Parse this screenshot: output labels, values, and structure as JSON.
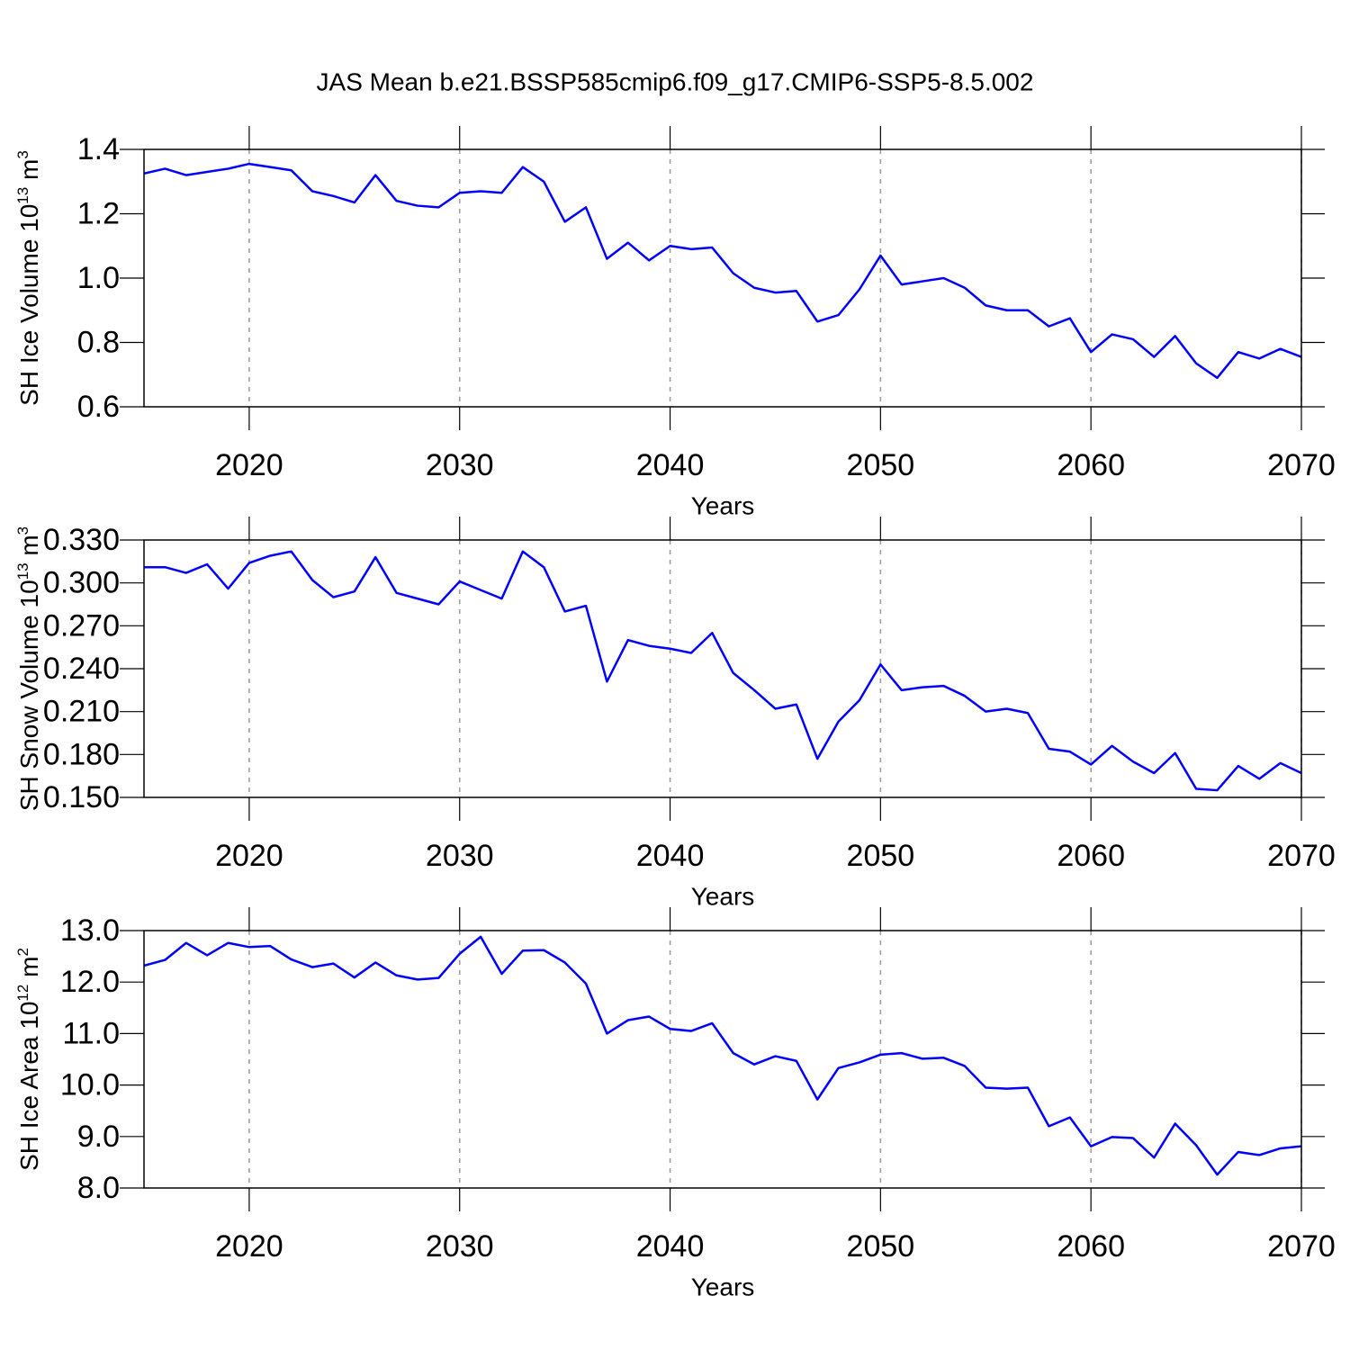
{
  "chart_data": [
    {
      "type": "line",
      "title": "JAS Mean b.e21.BSSP585cmip6.f09_g17.CMIP6-SSP5-8.5.002",
      "xlabel": "Years",
      "ylabel": {
        "text": "SH Ice Volume 10",
        "exp": "13",
        "unit": " m",
        "unit_exp": "3"
      },
      "x": [
        2015,
        2016,
        2017,
        2018,
        2019,
        2020,
        2021,
        2022,
        2023,
        2024,
        2025,
        2026,
        2027,
        2028,
        2029,
        2030,
        2031,
        2032,
        2033,
        2034,
        2035,
        2036,
        2037,
        2038,
        2039,
        2040,
        2041,
        2042,
        2043,
        2044,
        2045,
        2046,
        2047,
        2048,
        2049,
        2050,
        2051,
        2052,
        2053,
        2054,
        2055,
        2056,
        2057,
        2058,
        2059,
        2060,
        2061,
        2062,
        2063,
        2064,
        2065,
        2066,
        2067,
        2068,
        2069,
        2070
      ],
      "series": [
        {
          "color": "#0000ff",
          "values": [
            1.325,
            1.34,
            1.32,
            1.33,
            1.34,
            1.355,
            1.345,
            1.335,
            1.27,
            1.255,
            1.235,
            1.32,
            1.24,
            1.225,
            1.22,
            1.265,
            1.27,
            1.265,
            1.345,
            1.3,
            1.175,
            1.22,
            1.06,
            1.11,
            1.055,
            1.1,
            1.09,
            1.095,
            1.015,
            0.97,
            0.955,
            0.96,
            0.865,
            0.885,
            0.965,
            1.07,
            0.98,
            0.99,
            1.0,
            0.97,
            0.915,
            0.9,
            0.9,
            0.85,
            0.875,
            0.77,
            0.825,
            0.81,
            0.755,
            0.82,
            0.735,
            0.69,
            0.77,
            0.75,
            0.78,
            0.755
          ]
        }
      ],
      "xlim": [
        2015,
        2070
      ],
      "xticks": [
        2020,
        2030,
        2040,
        2050,
        2060,
        2070
      ],
      "ylim": [
        0.6,
        1.4
      ],
      "yticks": [
        0.6,
        0.8,
        {
          "value": 1,
          "label": "1.0"
        },
        1.2,
        1.4
      ],
      "grid": true
    },
    {
      "type": "line",
      "xlabel": "Years",
      "ylabel": {
        "text": "SH Snow Volume 10",
        "exp": "13",
        "unit": " m",
        "unit_exp": "3"
      },
      "x": [
        2015,
        2016,
        2017,
        2018,
        2019,
        2020,
        2021,
        2022,
        2023,
        2024,
        2025,
        2026,
        2027,
        2028,
        2029,
        2030,
        2031,
        2032,
        2033,
        2034,
        2035,
        2036,
        2037,
        2038,
        2039,
        2040,
        2041,
        2042,
        2043,
        2044,
        2045,
        2046,
        2047,
        2048,
        2049,
        2050,
        2051,
        2052,
        2053,
        2054,
        2055,
        2056,
        2057,
        2058,
        2059,
        2060,
        2061,
        2062,
        2063,
        2064,
        2065,
        2066,
        2067,
        2068,
        2069,
        2070
      ],
      "series": [
        {
          "color": "#0000ff",
          "values": [
            0.311,
            0.311,
            0.307,
            0.313,
            0.296,
            0.314,
            0.319,
            0.322,
            0.302,
            0.29,
            0.294,
            0.318,
            0.293,
            0.289,
            0.285,
            0.301,
            0.295,
            0.289,
            0.322,
            0.311,
            0.28,
            0.284,
            0.231,
            0.26,
            0.256,
            0.254,
            0.251,
            0.265,
            0.237,
            0.225,
            0.212,
            0.215,
            0.177,
            0.203,
            0.218,
            0.243,
            0.225,
            0.227,
            0.228,
            0.221,
            0.21,
            0.212,
            0.209,
            0.184,
            0.182,
            0.173,
            0.186,
            0.175,
            0.167,
            0.181,
            0.156,
            0.155,
            0.172,
            0.163,
            0.174,
            0.167
          ]
        }
      ],
      "xlim": [
        2015,
        2070
      ],
      "xticks": [
        2020,
        2030,
        2040,
        2050,
        2060,
        2070
      ],
      "ylim": [
        0.15,
        0.33
      ],
      "yticks": [
        {
          "value": 0.15,
          "label": "0.150"
        },
        {
          "value": 0.18,
          "label": "0.180"
        },
        {
          "value": 0.21,
          "label": "0.210"
        },
        {
          "value": 0.24,
          "label": "0.240"
        },
        {
          "value": 0.27,
          "label": "0.270"
        },
        {
          "value": 0.3,
          "label": "0.300"
        },
        {
          "value": 0.33,
          "label": "0.330"
        }
      ],
      "grid": true
    },
    {
      "type": "line",
      "xlabel": "Years",
      "ylabel": {
        "text": "SH Ice Area 10",
        "exp": "12",
        "unit": " m",
        "unit_exp": "2"
      },
      "x": [
        2015,
        2016,
        2017,
        2018,
        2019,
        2020,
        2021,
        2022,
        2023,
        2024,
        2025,
        2026,
        2027,
        2028,
        2029,
        2030,
        2031,
        2032,
        2033,
        2034,
        2035,
        2036,
        2037,
        2038,
        2039,
        2040,
        2041,
        2042,
        2043,
        2044,
        2045,
        2046,
        2047,
        2048,
        2049,
        2050,
        2051,
        2052,
        2053,
        2054,
        2055,
        2056,
        2057,
        2058,
        2059,
        2060,
        2061,
        2062,
        2063,
        2064,
        2065,
        2066,
        2067,
        2068,
        2069,
        2070
      ],
      "series": [
        {
          "color": "#0000ff",
          "values": [
            12.32,
            12.43,
            12.76,
            12.52,
            12.76,
            12.68,
            12.7,
            12.44,
            12.29,
            12.36,
            12.09,
            12.38,
            12.13,
            12.05,
            12.08,
            12.55,
            12.88,
            12.16,
            12.61,
            12.62,
            12.38,
            11.97,
            11.0,
            11.26,
            11.33,
            11.09,
            11.05,
            11.2,
            10.62,
            10.4,
            10.56,
            10.47,
            9.72,
            10.33,
            10.44,
            10.59,
            10.62,
            10.51,
            10.53,
            10.37,
            9.95,
            9.93,
            9.95,
            9.2,
            9.37,
            8.81,
            8.99,
            8.97,
            8.59,
            9.25,
            8.83,
            8.26,
            8.7,
            8.64,
            8.77,
            8.81
          ]
        }
      ],
      "xlim": [
        2015,
        2070
      ],
      "xticks": [
        2020,
        2030,
        2040,
        2050,
        2060,
        2070
      ],
      "ylim": [
        8,
        13
      ],
      "yticks": [
        {
          "value": 8,
          "label": "8.0"
        },
        {
          "value": 9,
          "label": "9.0"
        },
        {
          "value": 10,
          "label": "10.0"
        },
        {
          "value": 11,
          "label": "11.0"
        },
        {
          "value": 12,
          "label": "12.0"
        },
        {
          "value": 13,
          "label": "13.0"
        }
      ],
      "grid": true
    }
  ]
}
